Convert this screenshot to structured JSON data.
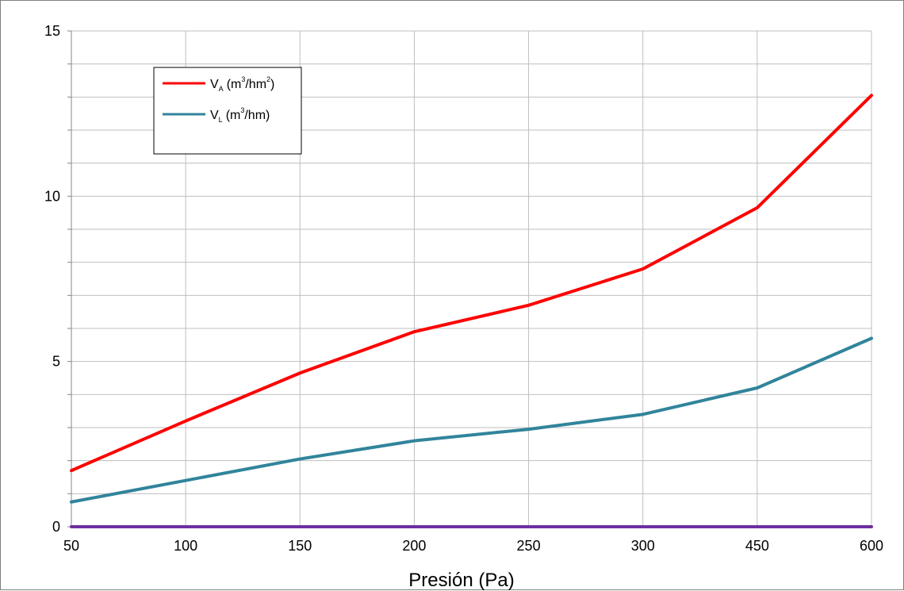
{
  "chart_data": {
    "type": "line",
    "categories": [
      "50",
      "100",
      "150",
      "200",
      "250",
      "300",
      "450",
      "600"
    ],
    "series": [
      {
        "name": "V_A (m³/hm²)",
        "color": "#ff0000",
        "values": [
          1.7,
          3.2,
          4.65,
          5.9,
          6.7,
          7.8,
          9.65,
          13.05
        ]
      },
      {
        "name": "V_L (m³/hm)",
        "color": "#31849b",
        "values": [
          0.75,
          1.4,
          2.05,
          2.6,
          2.95,
          3.4,
          4.2,
          5.7
        ]
      },
      {
        "name": "",
        "color": "#7030a0",
        "values": [
          0,
          0,
          0,
          0,
          0,
          0,
          0,
          0
        ]
      }
    ],
    "yticks": [
      "0",
      "5",
      "10",
      "15"
    ],
    "ylim": [
      0,
      15
    ],
    "minor_y_step": 1,
    "grid": true,
    "xlabel": "Presión (Pa)",
    "ylabel": "",
    "title": "",
    "legend_position": "top-left",
    "legend": {
      "va": {
        "base": "V",
        "sub": "A",
        "pre": "(m",
        "sup1": "3",
        "mid": "/hm",
        "sup2": "2",
        "post": ")"
      },
      "vl": {
        "base": "V",
        "sub": "L",
        "pre": "(m",
        "sup1": "3",
        "post": "/hm)"
      }
    }
  }
}
